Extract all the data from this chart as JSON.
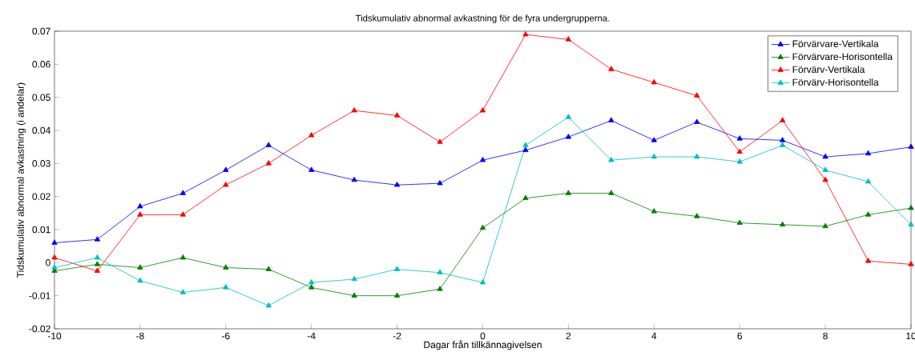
{
  "chart_data": {
    "type": "line",
    "title": "Tidskumulativ abnormal avkastning för de fyra undergrupperna.",
    "xlabel": "Dagar från tillkännagivelsen",
    "ylabel": "Tidskumulativ abnormal avkastning (i andelar)",
    "x": [
      -10,
      -9,
      -8,
      -7,
      -6,
      -5,
      -4,
      -3,
      -2,
      -1,
      0,
      1,
      2,
      3,
      4,
      5,
      6,
      7,
      8,
      9,
      10
    ],
    "series": [
      {
        "name": "Förvärvare-Vertikala",
        "color": "#0000ff",
        "values": [
          0.006,
          0.007,
          0.017,
          0.021,
          0.028,
          0.0355,
          0.028,
          0.025,
          0.0235,
          0.024,
          0.031,
          0.034,
          0.038,
          0.043,
          0.037,
          0.0425,
          0.0375,
          0.037,
          0.032,
          0.033,
          0.035
        ]
      },
      {
        "name": "Förvärvare-Horisontella",
        "color": "#008000",
        "values": [
          -0.0025,
          -0.0005,
          -0.0015,
          0.0015,
          -0.0015,
          -0.002,
          -0.0075,
          -0.01,
          -0.01,
          -0.008,
          0.0105,
          0.0195,
          0.021,
          0.021,
          0.0155,
          0.014,
          0.012,
          0.0115,
          0.011,
          0.0145,
          0.0165
        ]
      },
      {
        "name": "Förvärv-Vertikala",
        "color": "#ff0000",
        "values": [
          0.0015,
          -0.0025,
          0.0145,
          0.0145,
          0.0235,
          0.03,
          0.0385,
          0.046,
          0.0445,
          0.0365,
          0.046,
          0.069,
          0.0675,
          0.0585,
          0.0545,
          0.0505,
          0.0335,
          0.043,
          0.025,
          0.0005,
          -0.0005
        ]
      },
      {
        "name": "Förvärv-Horisontella",
        "color": "#00bfbf",
        "values": [
          -0.0015,
          0.0015,
          -0.0055,
          -0.009,
          -0.0075,
          -0.013,
          -0.006,
          -0.005,
          -0.002,
          -0.003,
          -0.006,
          0.0355,
          0.044,
          0.031,
          0.032,
          0.032,
          0.0305,
          0.0355,
          0.028,
          0.0245,
          0.0115
        ]
      }
    ],
    "xlim": [
      -10,
      10
    ],
    "ylim": [
      -0.02,
      0.07
    ],
    "xticks": [
      -10,
      -8,
      -6,
      -4,
      -2,
      0,
      2,
      4,
      6,
      8,
      10
    ],
    "yticks": [
      -0.02,
      -0.01,
      0,
      0.01,
      0.02,
      0.03,
      0.04,
      0.05,
      0.06,
      0.07
    ],
    "legend": "top right",
    "marker": "triangle",
    "line_style": "solid"
  }
}
